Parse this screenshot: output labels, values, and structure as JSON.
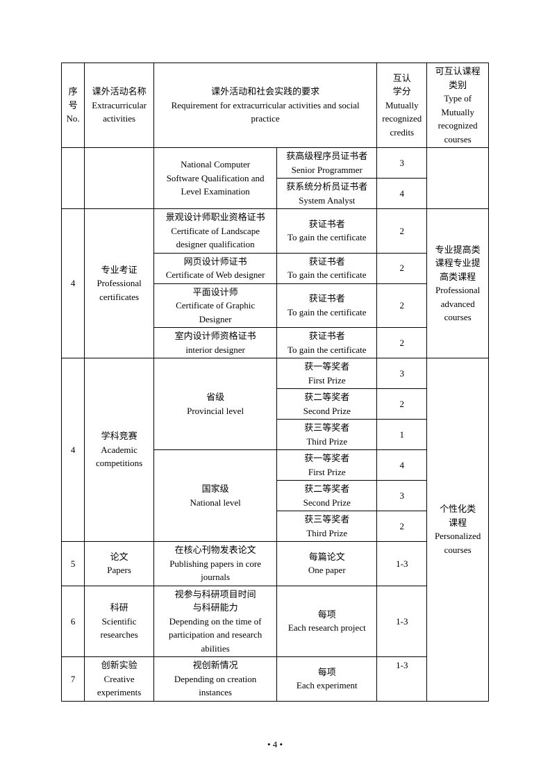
{
  "header": {
    "no": "序\n号\nNo.",
    "name": "课外活动名称\nExtracurricular\nactivities",
    "req": "课外活动和社会实践的要求\nRequirement for extracurricular activities and social\npractice",
    "credit": "互认\n学分\nMutually\nrecognized\ncredits",
    "type": "可互认课程\n类别\nType of\nMutually\nrecognized\ncourses"
  },
  "rows": {
    "r1_req1": "National Computer\nSoftware Qualification and\nLevel Examination",
    "r1_req2": "获高级程序员证书者\nSenior Programmer",
    "r1_credit": "3",
    "r2_req2": "获系统分析员证书者\nSystem Analyst",
    "r2_credit": "4",
    "r3_no": "4",
    "r3_name": "专业考证\nProfessional\ncertificates",
    "r3_req1": "景观设计师职业资格证书\nCertificate of Landscape\ndesigner qualification",
    "r3_req2": "获证书者\nTo gain the certificate",
    "r3_credit": "2",
    "r3_type": "专业提高类\n课程专业提\n高类课程\nProfessional\nadvanced\ncourses",
    "r4_req1": "网页设计师证书\nCertificate of Web designer",
    "r4_req2": "获证书者\nTo gain the certificate",
    "r4_credit": "2",
    "r5_req1": "平面设计师\nCertificate of Graphic\nDesigner",
    "r5_req2": "获证书者\nTo gain the certificate",
    "r5_credit": "2",
    "r6_req1": "室内设计师资格证书\ninterior designer",
    "r6_req2": "获证书者\nTo gain the certificate",
    "r6_credit": "2",
    "r7_no": "4",
    "r7_name": "学科竞赛\nAcademic\ncompetitions",
    "r7_req1": "省级\nProvincial level",
    "r7_req2": "获一等奖者\nFirst Prize",
    "r7_credit": "3",
    "r7_type": "个性化类\n课程\nPersonalized\ncourses",
    "r8_req2": "获二等奖者\nSecond Prize",
    "r8_credit": "2",
    "r9_req2": "获三等奖者\nThird Prize",
    "r9_credit": "1",
    "r10_req1": "国家级\nNational level",
    "r10_req2": "获一等奖者\nFirst Prize",
    "r10_credit": "4",
    "r11_req2": "获二等奖者\nSecond Prize",
    "r11_credit": "3",
    "r12_req2": "获三等奖者\nThird Prize",
    "r12_credit": "2",
    "r13_no": "5",
    "r13_name": "论文\nPapers",
    "r13_req1": "在核心刊物发表论文\nPublishing papers in core\njournals",
    "r13_req2": "每篇论文\nOne paper",
    "r13_credit": "1-3",
    "r14_no": "6",
    "r14_name": "科研\nScientific\nresearches",
    "r14_req1": "视参与科研项目时间\n与科研能力\nDepending on the time of\nparticipation and research\nabilities",
    "r14_req2": "每项\nEach research project",
    "r14_credit": "1-3",
    "r15_no": "7",
    "r15_name": "创新实验\nCreative\nexperiments",
    "r15_req1": "视创新情况\nDepending on creation\ninstances",
    "r15_req2": "每项\nEach experiment",
    "r15_credit": "1-3"
  },
  "pagenum": "4"
}
